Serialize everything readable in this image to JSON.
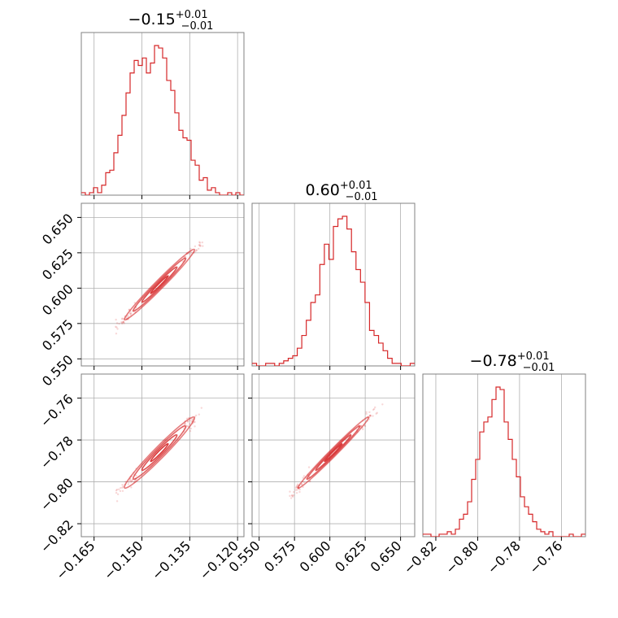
{
  "colors": {
    "accent": "#d62728",
    "grid": "#b0b0b0",
    "frame": "#808080"
  },
  "chart_data": {
    "type": "corner",
    "parameters": [
      {
        "id": "p0",
        "title": {
          "median": "−0.15",
          "plus": "+0.01",
          "minus": "−0.01"
        },
        "range": [
          -0.169,
          -0.118
        ],
        "ticks": [
          -0.165,
          -0.15,
          -0.135,
          -0.12
        ],
        "tick_labels": [
          "−0.165",
          "−0.150",
          "−0.135",
          "−0.120"
        ],
        "hist_counts": [
          1,
          0,
          1,
          3,
          1,
          4,
          9,
          10,
          17,
          24,
          32,
          41,
          49,
          54,
          52,
          55,
          49,
          53,
          60,
          59,
          55,
          46,
          42,
          33,
          26,
          23,
          22,
          14,
          12,
          6,
          7,
          2,
          3,
          1,
          0,
          0,
          1,
          0,
          1,
          0
        ]
      },
      {
        "id": "p1",
        "title": {
          "median": "0.60",
          "plus": "+0.01",
          "minus": "−0.01"
        },
        "range": [
          0.545,
          0.66
        ],
        "ticks": [
          0.55,
          0.575,
          0.6,
          0.625,
          0.65
        ],
        "tick_labels": [
          "0.550",
          "0.575",
          "0.600",
          "0.625",
          "0.650"
        ],
        "hist_counts": [
          1,
          0,
          0,
          1,
          1,
          0,
          1,
          2,
          3,
          4,
          7,
          12,
          18,
          25,
          28,
          40,
          48,
          42,
          55,
          58,
          59,
          54,
          45,
          38,
          33,
          25,
          14,
          12,
          9,
          6,
          3,
          1,
          1,
          0,
          0,
          1
        ]
      },
      {
        "id": "p2",
        "title": {
          "median": "−0.78",
          "plus": "+0.01",
          "minus": "−0.01"
        },
        "range": [
          -0.8262,
          -0.7485
        ],
        "ticks": [
          -0.82,
          -0.8,
          -0.78,
          -0.76
        ],
        "tick_labels": [
          "−0.82",
          "−0.80",
          "−0.78",
          "−0.76"
        ],
        "hist_counts": [
          1,
          1,
          0,
          0,
          1,
          1,
          2,
          1,
          3,
          7,
          9,
          14,
          23,
          31,
          42,
          46,
          48,
          55,
          60,
          59,
          46,
          39,
          31,
          24,
          16,
          12,
          9,
          6,
          3,
          2,
          1,
          2,
          0,
          0,
          0,
          0,
          1,
          0,
          0,
          1
        ]
      }
    ],
    "pairs": [
      {
        "x": "p0",
        "y": "p1",
        "mean": [
          -0.1445,
          0.6025
        ],
        "sd": [
          0.0055,
          0.0125
        ],
        "rho": 0.985
      },
      {
        "x": "p0",
        "y": "p2",
        "mean": [
          -0.1445,
          -0.786
        ],
        "sd": [
          0.0055,
          0.0085
        ],
        "rho": 0.975
      },
      {
        "x": "p1",
        "y": "p2",
        "mean": [
          0.6025,
          -0.786
        ],
        "sd": [
          0.0125,
          0.0085
        ],
        "rho": 0.99
      }
    ],
    "grid": true
  }
}
